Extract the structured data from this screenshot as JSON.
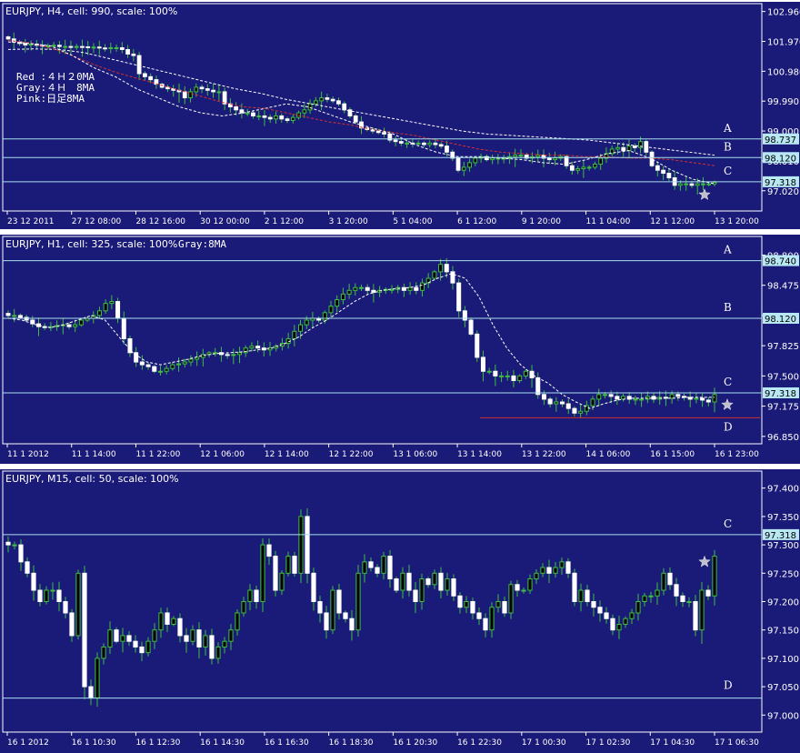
{
  "chart_data": [
    {
      "type": "candlestick",
      "title": "EURJPY, H4, cell: 990, scale: 100%",
      "annotation_lines": [
        "Red :４Ｈ２0MA",
        "Gray:４Ｈ　8MA",
        " Pink:日足8MA"
      ],
      "ylim": [
        96.35,
        103.22
      ],
      "yticks": [
        "102.960",
        "101.970",
        "100.980",
        "99.990",
        "99.000",
        "98.010",
        "97.020"
      ],
      "xticks": [
        "23 12 2011",
        "27 12 08:00",
        "28 12 16:00",
        "30 12 00:00",
        "2 1 12:00",
        "3 1 20:00",
        "5 1 04:00",
        "6 1 12:00",
        "9 1 20:00",
        "11 1 04:00",
        "12 1 12:00",
        "13 1 20:00"
      ],
      "levels": [
        {
          "label": "A",
          "value": 98.737,
          "tag": "98.737"
        },
        {
          "label": "B",
          "value": 98.12,
          "tag": "98.120"
        },
        {
          "label": "C",
          "value": 97.318,
          "tag": "97.318"
        }
      ],
      "closes": [
        102.05,
        101.95,
        101.9,
        101.85,
        101.88,
        101.84,
        101.82,
        101.82,
        101.84,
        101.8,
        101.8,
        101.78,
        101.8,
        101.79,
        101.76,
        101.78,
        101.75,
        101.74,
        101.76,
        101.76,
        101.7,
        101.55,
        101.5,
        100.9,
        100.8,
        100.7,
        100.55,
        100.45,
        100.4,
        100.35,
        100.3,
        100.1,
        100.3,
        100.45,
        100.4,
        100.35,
        100.3,
        100.3,
        99.9,
        99.8,
        99.7,
        99.6,
        99.6,
        99.5,
        99.5,
        99.45,
        99.4,
        99.5,
        99.4,
        99.35,
        99.45,
        99.6,
        99.7,
        99.9,
        100.0,
        100.1,
        100.05,
        100.0,
        99.9,
        99.7,
        99.5,
        99.3,
        99.1,
        99.05,
        99.0,
        98.95,
        98.9,
        98.7,
        98.65,
        98.6,
        98.6,
        98.58,
        98.6,
        98.55,
        98.6,
        98.55,
        98.5,
        98.3,
        98.1,
        97.7,
        97.8,
        97.95,
        98.1,
        98.15,
        98.05,
        98.1,
        98.1,
        98.1,
        98.15,
        98.2,
        98.2,
        98.1,
        98.15,
        98.2,
        98.1,
        98.05,
        98.1,
        98.15,
        97.85,
        97.7,
        97.75,
        97.8,
        97.8,
        97.9,
        98.1,
        98.25,
        98.4,
        98.45,
        98.35,
        98.5,
        98.45,
        98.65,
        98.3,
        97.85,
        97.7,
        97.6,
        97.45,
        97.2,
        97.25,
        97.25,
        97.2,
        97.25,
        97.25,
        97.25,
        97.3
      ],
      "ma_gray_8": [
        101.95,
        101.9,
        101.82,
        101.5,
        101.1,
        100.8,
        100.4,
        100.1,
        99.8,
        99.6,
        99.5,
        99.6,
        99.75,
        99.9,
        99.8,
        99.55,
        99.3,
        99.1,
        98.9,
        98.55,
        98.3,
        98.15,
        98.15,
        98.1,
        98.05,
        97.95,
        97.9,
        98.05,
        98.25,
        98.35,
        98.1,
        97.7,
        97.4,
        97.25
      ],
      "ma_red_20": [
        102.0,
        101.92,
        101.75,
        101.5,
        101.2,
        100.95,
        100.75,
        100.55,
        100.35,
        100.15,
        99.95,
        99.8,
        99.75,
        99.6,
        99.45,
        99.3,
        99.2,
        99.05,
        98.95,
        98.85,
        98.7,
        98.55,
        98.4,
        98.3,
        98.25,
        98.2,
        98.2,
        98.15,
        98.15,
        98.1,
        98.1,
        98.05,
        97.95,
        97.85
      ],
      "ma_pink_daily8": [
        101.7,
        101.72,
        101.7,
        101.6,
        101.4,
        101.2,
        101.0,
        100.8,
        100.6,
        100.4,
        100.25,
        100.05,
        99.9,
        99.75,
        99.6,
        99.45,
        99.3,
        99.15,
        99.0,
        98.9,
        98.85,
        98.8,
        98.75,
        98.7,
        98.6,
        98.5,
        98.4,
        98.3,
        98.2
      ]
    },
    {
      "type": "candlestick",
      "title": "EURJPY, H1, cell: 325, scale: 100%",
      "annotation_lines": [
        "Gray:8MA"
      ],
      "ylim": [
        96.77,
        99.0
      ],
      "yticks": [
        "98.800",
        "98.475",
        "98.150",
        "97.825",
        "97.500",
        "97.175",
        "96.850"
      ],
      "xticks": [
        "11 1 2012",
        "11 1 14:00",
        "11 1 22:00",
        "12 1 06:00",
        "12 1 14:00",
        "12 1 22:00",
        "13 1 06:00",
        "13 1 14:00",
        "13 1 22:00",
        "14 1 06:00",
        "16 1 15:00",
        "16 1 23:00"
      ],
      "levels": [
        {
          "label": "A",
          "value": 98.74,
          "tag": "98.740"
        },
        {
          "label": "B",
          "value": 98.12,
          "tag": "98.120"
        },
        {
          "label": "C",
          "value": 97.318,
          "tag": "97.318"
        },
        {
          "label": "D",
          "value": 97.05,
          "tag": ""
        }
      ],
      "closes": [
        98.15,
        98.15,
        98.13,
        98.1,
        98.06,
        98.03,
        98.02,
        98.03,
        98.04,
        98.05,
        98.03,
        98.05,
        98.1,
        98.12,
        98.15,
        98.2,
        98.28,
        98.3,
        98.12,
        97.9,
        97.75,
        97.65,
        97.62,
        97.6,
        97.55,
        97.55,
        97.58,
        97.62,
        97.63,
        97.65,
        97.68,
        97.7,
        97.73,
        97.75,
        97.75,
        97.73,
        97.72,
        97.73,
        97.75,
        97.8,
        97.82,
        97.8,
        97.78,
        97.8,
        97.82,
        97.85,
        97.9,
        97.98,
        98.05,
        98.1,
        98.12,
        98.1,
        98.18,
        98.25,
        98.32,
        98.38,
        98.42,
        98.45,
        98.45,
        98.42,
        98.4,
        98.42,
        98.43,
        98.43,
        98.45,
        98.42,
        98.45,
        98.42,
        98.5,
        98.55,
        98.62,
        98.7,
        98.62,
        98.5,
        98.2,
        98.1,
        97.95,
        97.7,
        97.55,
        97.55,
        97.5,
        97.5,
        97.5,
        97.45,
        97.5,
        97.55,
        97.48,
        97.3,
        97.25,
        97.2,
        97.22,
        97.2,
        97.15,
        97.1,
        97.12,
        97.18,
        97.25,
        97.3,
        97.3,
        97.28,
        97.25,
        97.28,
        97.25,
        97.25,
        97.25,
        97.28,
        97.25,
        97.27,
        97.26,
        97.3,
        97.28,
        97.27,
        97.25,
        97.26,
        97.24,
        97.22,
        97.3
      ],
      "ma_gray_8": [
        98.12,
        98.1,
        98.05,
        98.02,
        98.05,
        98.1,
        98.15,
        98.1,
        97.92,
        97.75,
        97.65,
        97.62,
        97.65,
        97.68,
        97.72,
        97.74,
        97.75,
        97.76,
        97.78,
        97.8,
        97.85,
        97.92,
        98.02,
        98.1,
        98.2,
        98.3,
        98.38,
        98.42,
        98.44,
        98.45,
        98.48,
        98.55,
        98.6,
        98.55,
        98.35,
        98.05,
        97.8,
        97.62,
        97.5,
        97.42,
        97.3,
        97.22,
        97.15,
        97.2,
        97.24,
        97.26,
        97.26,
        97.26,
        97.26,
        97.27,
        97.27,
        97.27
      ]
    },
    {
      "type": "candlestick",
      "title": "EURJPY, M15, cell: 50, scale: 100%",
      "ylim": [
        96.97,
        97.43
      ],
      "yticks": [
        "97.400",
        "97.350",
        "97.300",
        "97.250",
        "97.200",
        "97.150",
        "97.100",
        "97.050",
        "97.000"
      ],
      "xticks": [
        "16 1 2012",
        "16 1 10:30",
        "16 1 12:30",
        "16 1 14:30",
        "16 1 16:30",
        "16 1 18:30",
        "16 1 20:30",
        "16 1 22:30",
        "17 1 00:30",
        "17 1 02:30",
        "17 1 04:30",
        "17 1 06:30"
      ],
      "levels": [
        {
          "label": "C",
          "value": 97.318,
          "tag": "97.318"
        },
        {
          "label": "D",
          "value": 97.03,
          "tag": ""
        }
      ],
      "closes": [
        97.3,
        97.3,
        97.27,
        97.25,
        97.22,
        97.2,
        97.22,
        97.22,
        97.2,
        97.18,
        97.14,
        97.25,
        97.05,
        97.03,
        97.1,
        97.12,
        97.15,
        97.13,
        97.14,
        97.13,
        97.12,
        97.11,
        97.13,
        97.15,
        97.18,
        97.16,
        97.17,
        97.14,
        97.13,
        97.15,
        97.12,
        97.14,
        97.1,
        97.12,
        97.13,
        97.15,
        97.18,
        97.2,
        97.22,
        97.2,
        97.3,
        97.28,
        97.22,
        97.25,
        97.28,
        97.25,
        97.35,
        97.25,
        97.2,
        97.18,
        97.15,
        97.22,
        97.18,
        97.17,
        97.15,
        97.25,
        97.27,
        97.26,
        97.25,
        97.28,
        97.24,
        97.22,
        97.25,
        97.22,
        97.2,
        97.24,
        97.23,
        97.25,
        97.22,
        97.24,
        97.21,
        97.19,
        97.2,
        97.18,
        97.17,
        97.15,
        97.19,
        97.2,
        97.18,
        97.23,
        97.22,
        97.22,
        97.24,
        97.25,
        97.26,
        97.25,
        97.26,
        97.27,
        97.25,
        97.2,
        97.22,
        97.2,
        97.19,
        97.18,
        97.17,
        97.15,
        97.16,
        97.17,
        97.18,
        97.2,
        97.21,
        97.21,
        97.22,
        97.25,
        97.23,
        97.21,
        97.2,
        97.2,
        97.15,
        97.22,
        97.21,
        97.28
      ],
      "star": 97.27
    }
  ]
}
